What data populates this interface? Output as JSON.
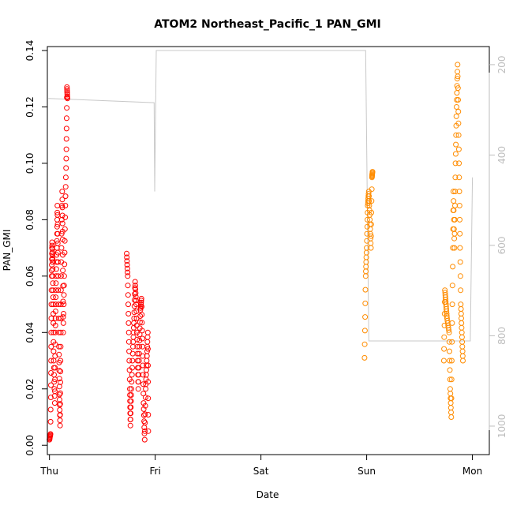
{
  "chart_data": {
    "type": "scatter",
    "title": "ATOM2 Northeast_Pacific_1 PAN_GMI",
    "xlabel": "Date",
    "ylabel": "PAN_GMI",
    "x_ticks": [
      "Thu",
      "Fri",
      "Sat",
      "Sun",
      "Mon"
    ],
    "xlim": [
      -0.02,
      4.16
    ],
    "ylim": [
      -0.0033,
      0.1414
    ],
    "y_ticks": [
      0.0,
      0.02,
      0.04,
      0.06,
      0.08,
      0.1,
      0.12,
      0.14
    ],
    "y_tick_labels": [
      "0.00",
      "0.02",
      "0.04",
      "0.06",
      "0.08",
      "0.10",
      "0.12",
      "0.14"
    ],
    "secondary_axis": {
      "side": "right",
      "reversed": true,
      "ylim": [
        1063,
        160
      ],
      "ticks": [
        200,
        400,
        600,
        800,
        1000
      ],
      "color": "#bdbdbd"
    },
    "series": [
      {
        "color": "#ff0000",
        "marker": "open-circle",
        "segments": [
          [
            [
              0.0,
              0.002
            ],
            [
              0.01,
              0.004
            ],
            [
              0.015,
              0.03
            ],
            [
              0.02,
              0.06
            ],
            [
              0.025,
              0.072
            ],
            [
              0.03,
              0.065
            ],
            [
              0.035,
              0.05
            ],
            [
              0.04,
              0.03
            ],
            [
              0.05,
              0.015
            ],
            [
              0.055,
              0.04
            ],
            [
              0.06,
              0.055
            ],
            [
              0.07,
              0.07
            ],
            [
              0.075,
              0.085
            ],
            [
              0.08,
              0.065
            ],
            [
              0.09,
              0.035
            ],
            [
              0.095,
              0.018
            ],
            [
              0.1,
              0.007
            ],
            [
              0.105,
              0.03
            ],
            [
              0.11,
              0.06
            ],
            [
              0.12,
              0.09
            ],
            [
              0.125,
              0.073
            ],
            [
              0.13,
              0.04
            ],
            [
              0.14,
              0.06
            ],
            [
              0.15,
              0.085
            ],
            [
              0.16,
              0.105
            ],
            [
              0.165,
              0.127
            ],
            [
              0.17,
              0.123
            ]
          ],
          [
            [
              0.73,
              0.068
            ],
            [
              0.74,
              0.06
            ],
            [
              0.75,
              0.04
            ],
            [
              0.76,
              0.02
            ],
            [
              0.765,
              0.007
            ],
            [
              0.775,
              0.02
            ],
            [
              0.79,
              0.035
            ],
            [
              0.8,
              0.045
            ],
            [
              0.81,
              0.058
            ],
            [
              0.82,
              0.05
            ],
            [
              0.83,
              0.035
            ],
            [
              0.84,
              0.02
            ],
            [
              0.85,
              0.035
            ],
            [
              0.86,
              0.048
            ],
            [
              0.87,
              0.052
            ],
            [
              0.88,
              0.035
            ],
            [
              0.89,
              0.015
            ],
            [
              0.9,
              0.002
            ],
            [
              0.91,
              0.02
            ],
            [
              0.92,
              0.03
            ],
            [
              0.93,
              0.04
            ],
            [
              0.935,
              0.005
            ]
          ]
        ]
      },
      {
        "color": "#ff8c00",
        "marker": "open-circle",
        "segments": [
          [
            [
              2.98,
              0.031
            ],
            [
              2.99,
              0.06
            ],
            [
              3.0,
              0.07
            ],
            [
              3.01,
              0.085
            ],
            [
              3.02,
              0.09
            ],
            [
              3.03,
              0.08
            ],
            [
              3.04,
              0.07
            ],
            [
              3.05,
              0.095
            ],
            [
              3.055,
              0.097
            ]
          ],
          [
            [
              3.73,
              0.03
            ],
            [
              3.74,
              0.055
            ],
            [
              3.75,
              0.05
            ],
            [
              3.76,
              0.045
            ],
            [
              3.78,
              0.04
            ],
            [
              3.79,
              0.02
            ],
            [
              3.8,
              0.01
            ],
            [
              3.81,
              0.05
            ],
            [
              3.82,
              0.09
            ],
            [
              3.83,
              0.07
            ],
            [
              3.84,
              0.1
            ],
            [
              3.85,
              0.12
            ],
            [
              3.86,
              0.135
            ],
            [
              3.87,
              0.11
            ],
            [
              3.88,
              0.08
            ],
            [
              3.89,
              0.05
            ],
            [
              3.9,
              0.04
            ],
            [
              3.91,
              0.03
            ]
          ]
        ]
      }
    ],
    "gray_line": {
      "color": "#c8c8c8",
      "points": [
        [
          -0.01,
          0.123
        ],
        [
          0.99,
          0.1215
        ],
        [
          0.995,
          0.09
        ],
        [
          1.01,
          0.14
        ],
        [
          2.99,
          0.14
        ],
        [
          3.02,
          0.037
        ],
        [
          3.98,
          0.037
        ],
        [
          4.0,
          0.095
        ]
      ]
    },
    "grid": false,
    "legend": "none"
  }
}
